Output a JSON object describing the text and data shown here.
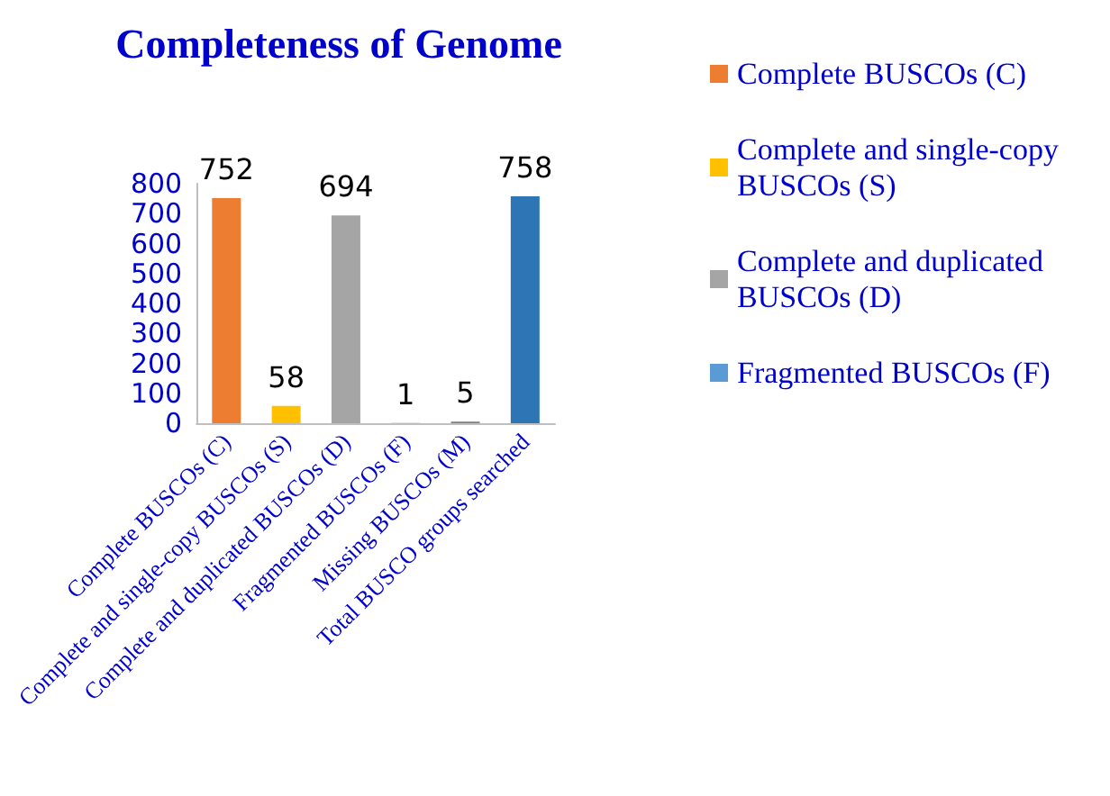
{
  "chart_data": {
    "type": "bar",
    "title": "Completeness of Genome",
    "categories": [
      "Complete BUSCOs (C)",
      "Complete and single-copy BUSCOs (S)",
      "Complete and duplicated BUSCOs (D)",
      "Fragmented BUSCOs (F)",
      "Missing BUSCOs (M)",
      "Total BUSCO groups searched"
    ],
    "series": [
      {
        "name": "Complete BUSCOs (C)",
        "color": "#ed7d31",
        "values": [
          752,
          null,
          null,
          null,
          null,
          null
        ]
      },
      {
        "name": "Complete and single-copy BUSCOs (S)",
        "color": "#ffc000",
        "values": [
          null,
          58,
          null,
          null,
          null,
          null
        ]
      },
      {
        "name": "Complete and duplicated BUSCOs (D)",
        "color": "#a5a5a5",
        "values": [
          null,
          null,
          694,
          null,
          null,
          null
        ]
      },
      {
        "name": "Fragmented BUSCOs (F)",
        "color": "#5b9bd5",
        "values": [
          null,
          null,
          null,
          1,
          null,
          null
        ]
      },
      {
        "color": "#7f7f7f",
        "values": [
          null,
          null,
          null,
          null,
          5,
          null
        ]
      },
      {
        "color": "#2e75b6",
        "values": [
          null,
          null,
          null,
          null,
          null,
          758
        ]
      }
    ],
    "stacked": true,
    "ylim": [
      0,
      800
    ],
    "yticks": [
      0,
      100,
      200,
      300,
      400,
      500,
      600,
      700,
      800
    ],
    "data_labels": true,
    "grid": false,
    "legend": "right"
  }
}
